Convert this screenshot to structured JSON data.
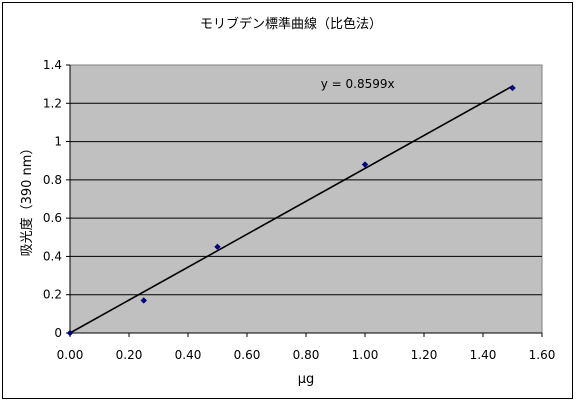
{
  "chart_data": {
    "type": "scatter",
    "title": "モリブデン標準曲線（比色法）",
    "xlabel": "μg",
    "ylabel": "吸光度（390 nm）",
    "xlim": [
      0,
      1.6
    ],
    "ylim": [
      0,
      1.4
    ],
    "x_ticks": [
      "0.00",
      "0.20",
      "0.40",
      "0.60",
      "0.80",
      "1.00",
      "1.20",
      "1.40",
      "1.60"
    ],
    "y_ticks": [
      "0",
      "0.2",
      "0.4",
      "0.6",
      "0.8",
      "1",
      "1.2",
      "1.4"
    ],
    "grid": "horizontal",
    "series": [
      {
        "points": [
          {
            "x": 0.0,
            "y": 0.0
          },
          {
            "x": 0.25,
            "y": 0.17
          },
          {
            "x": 0.5,
            "y": 0.45
          },
          {
            "x": 1.0,
            "y": 0.88
          },
          {
            "x": 1.5,
            "y": 1.28
          }
        ],
        "color": "#000080"
      }
    ],
    "trendline": {
      "slope": 0.8599,
      "x_range": [
        0,
        1.5
      ],
      "equation_label": "y = 0.8599x",
      "color": "#000000"
    },
    "plot_background": "#c0c0c0"
  }
}
